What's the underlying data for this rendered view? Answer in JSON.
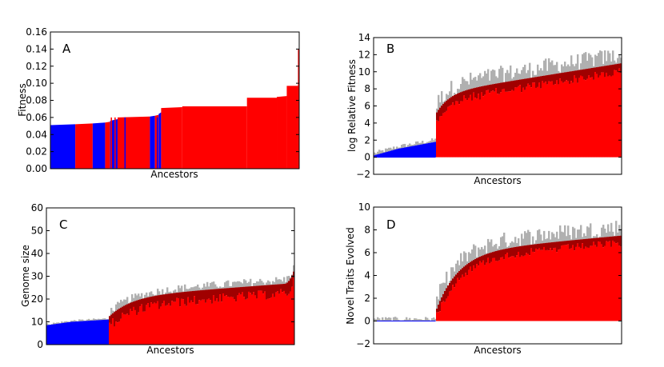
{
  "colors": {
    "blue": "#0000ff",
    "red": "#ff0000",
    "darkred": "#a00000",
    "gray": "#b0b0b0"
  },
  "chart_data": [
    {
      "id": "A",
      "type": "bar",
      "panel_label": "A",
      "xlabel": "Ancestors",
      "ylabel": "Fitness",
      "ylim": [
        0,
        0.16
      ],
      "ticks": [
        "0.00",
        "0.02",
        "0.04",
        "0.06",
        "0.08",
        "0.10",
        "0.12",
        "0.14",
        "0.16"
      ],
      "tick_values": [
        0,
        0.02,
        0.04,
        0.06,
        0.08,
        0.1,
        0.12,
        0.14,
        0.16
      ],
      "segments": [
        {
          "from": 0.0,
          "to": 0.1,
          "color": "blue",
          "y0": 0.051,
          "y1": 0.052
        },
        {
          "from": 0.1,
          "to": 0.17,
          "color": "red",
          "y0": 0.052,
          "y1": 0.053
        },
        {
          "from": 0.17,
          "to": 0.22,
          "color": "blue",
          "y0": 0.053,
          "y1": 0.054
        },
        {
          "from": 0.22,
          "to": 0.24,
          "color": "red",
          "y0": 0.054,
          "y1": 0.055
        },
        {
          "from": 0.24,
          "to": 0.27,
          "color": "blue",
          "y0": 0.056,
          "y1": 0.058
        },
        {
          "from": 0.27,
          "to": 0.4,
          "color": "red",
          "y0": 0.06,
          "y1": 0.061
        },
        {
          "from": 0.4,
          "to": 0.42,
          "color": "blue",
          "y0": 0.061,
          "y1": 0.062
        },
        {
          "from": 0.42,
          "to": 0.435,
          "color": "red",
          "y0": 0.062,
          "y1": 0.063
        },
        {
          "from": 0.435,
          "to": 0.445,
          "color": "blue",
          "y0": 0.064,
          "y1": 0.066
        },
        {
          "from": 0.445,
          "to": 0.53,
          "color": "red",
          "y0": 0.071,
          "y1": 0.072
        },
        {
          "from": 0.53,
          "to": 0.79,
          "color": "red",
          "y0": 0.073,
          "y1": 0.073
        },
        {
          "from": 0.79,
          "to": 0.91,
          "color": "red",
          "y0": 0.083,
          "y1": 0.083
        },
        {
          "from": 0.91,
          "to": 0.95,
          "color": "red",
          "y0": 0.084,
          "y1": 0.085
        },
        {
          "from": 0.95,
          "to": 0.995,
          "color": "red",
          "y0": 0.097,
          "y1": 0.097
        },
        {
          "from": 0.995,
          "to": 1.0,
          "color": "red",
          "y0": 0.14,
          "y1": 0.14
        }
      ],
      "accents": [
        0.245,
        0.26,
        0.3,
        0.43,
        0.44
      ]
    },
    {
      "id": "B",
      "type": "bar",
      "panel_label": "B",
      "xlabel": "Ancestors",
      "ylabel": "log Relative Fitness",
      "ylim": [
        -2,
        14
      ],
      "ticks": [
        "−2",
        "0",
        "2",
        "4",
        "6",
        "8",
        "10",
        "12",
        "14"
      ],
      "tick_values": [
        -2,
        0,
        2,
        4,
        6,
        8,
        10,
        12,
        14
      ],
      "blue_end": 0.25,
      "jump": 0.25,
      "pre": {
        "start": 0.2,
        "mid": 1.0,
        "end": 1.8
      },
      "post": {
        "start": 5.0,
        "k": 0.07,
        "knee": 7.5,
        "end": 11.0
      },
      "noise_top": 2.0,
      "noise_dark": 0.35
    },
    {
      "id": "C",
      "type": "bar",
      "panel_label": "C",
      "xlabel": "Ancestors",
      "ylabel": "Genome size",
      "ylim": [
        0,
        60
      ],
      "ticks": [
        "0",
        "10",
        "20",
        "30",
        "40",
        "50",
        "60"
      ],
      "tick_values": [
        0,
        10,
        20,
        30,
        40,
        50,
        60
      ],
      "blue_end": 0.25,
      "jump": 0.25,
      "pre": {
        "start": 8.5,
        "mid": 10.0,
        "end": 11.0
      },
      "post": {
        "start": 12.0,
        "k": 0.12,
        "knee": 21.0,
        "end": 27.0
      },
      "tail": {
        "from": 0.96,
        "to": 33.0
      },
      "noise_top": 3.5,
      "noise_dark": 0.4
    },
    {
      "id": "D",
      "type": "bar",
      "panel_label": "D",
      "xlabel": "Ancestors",
      "ylabel": "Novel Traits Evolved",
      "ylim": [
        -2,
        10
      ],
      "ticks": [
        "−2",
        "0",
        "2",
        "4",
        "6",
        "8",
        "10"
      ],
      "tick_values": [
        -2,
        0,
        2,
        4,
        6,
        8,
        10
      ],
      "blue_end": 0.25,
      "jump": 0.25,
      "pre": {
        "start": 0.0,
        "mid": 0.0,
        "end": 0.0
      },
      "post": {
        "start": 0.8,
        "k": 0.12,
        "knee": 6.0,
        "end": 7.5
      },
      "noise_top": 1.5,
      "noise_dark": 0.3
    }
  ]
}
